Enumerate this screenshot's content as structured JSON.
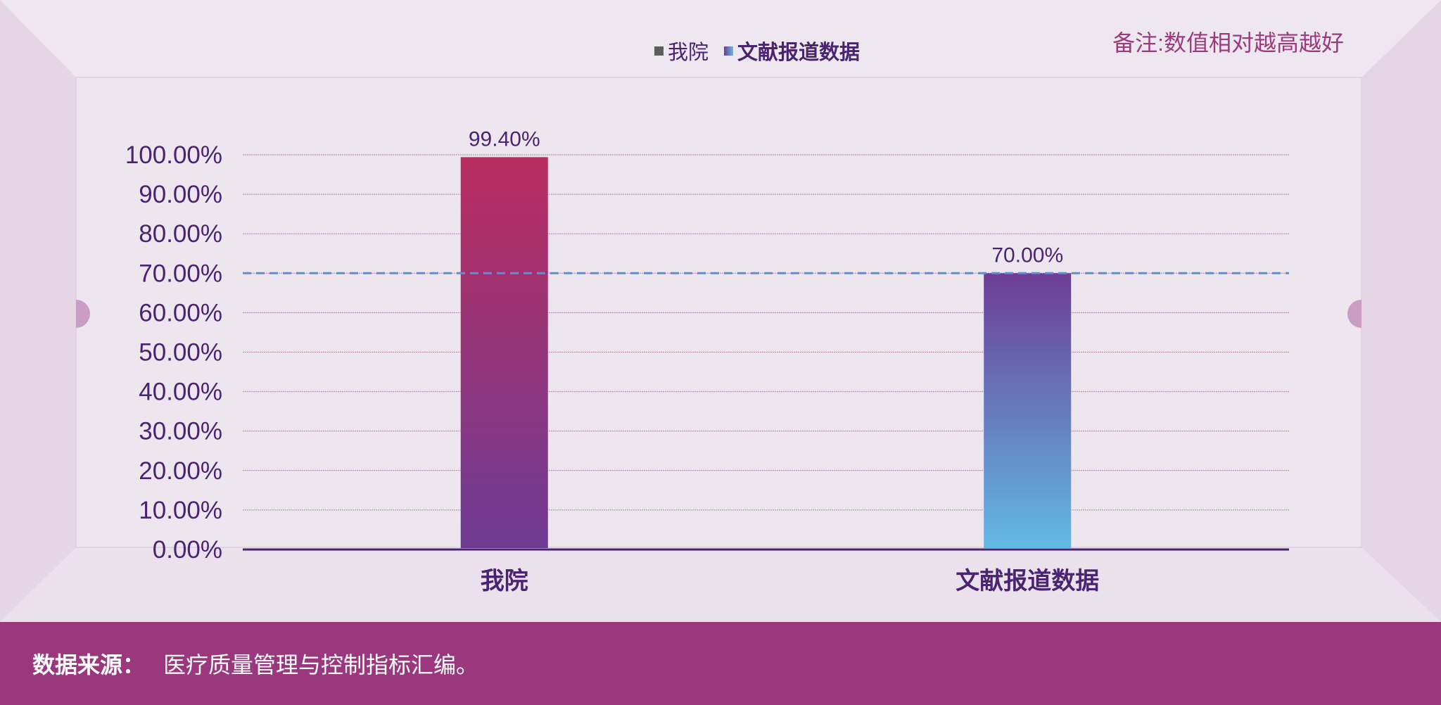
{
  "note": "备注:数值相对越高越好",
  "footer": {
    "label": "数据来源：",
    "text": "医疗质量管理与控制指标汇编。"
  },
  "legend": {
    "items": [
      {
        "label": "我院",
        "swatch": "square-gray"
      },
      {
        "label": "文献报道数据",
        "swatch": "gradient-purple-blue"
      }
    ]
  },
  "colors": {
    "bar1_top": "#b92d5f",
    "bar1_bottom": "#6d3b93",
    "bar2_top": "#6c3d94",
    "bar2_bottom": "#62b9e4",
    "reference_line": "#5b8fd6",
    "axis_text": "#4a2371",
    "footer_bg": "#9a377d"
  },
  "chart_data": {
    "type": "bar",
    "categories": [
      "我院",
      "文献报道数据"
    ],
    "values": [
      99.4,
      70.0
    ],
    "data_labels": [
      "99.40%",
      "70.00%"
    ],
    "ylim": [
      0,
      100
    ],
    "y_ticks": [
      0,
      10,
      20,
      30,
      40,
      50,
      60,
      70,
      80,
      90,
      100
    ],
    "y_tick_labels": [
      "0.00%",
      "10.00%",
      "20.00%",
      "30.00%",
      "40.00%",
      "50.00%",
      "60.00%",
      "70.00%",
      "80.00%",
      "90.00%",
      "100.00%"
    ],
    "reference_line": 70.0,
    "grid": true,
    "legend_position": "top-center"
  }
}
